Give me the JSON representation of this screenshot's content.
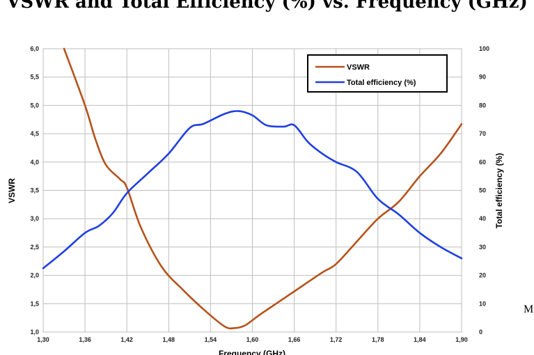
{
  "page": {
    "title": "VSWR and Total Efficiency (%) vs. Frequency (GHz)",
    "side_text": "M"
  },
  "chart_data": {
    "type": "line",
    "xlabel": "Frequency (GHz)",
    "ylabel": "VSWR",
    "y2label": "Total efficiency (%)",
    "xlim": [
      1.3,
      1.9
    ],
    "ylim": [
      1.0,
      6.0
    ],
    "y2lim": [
      0,
      100
    ],
    "grid": true,
    "legend_position": "top-right",
    "x_ticks": [
      "1,30",
      "1,36",
      "1,42",
      "1,48",
      "1,54",
      "1,60",
      "1,66",
      "1,72",
      "1,78",
      "1,84",
      "1,90"
    ],
    "y_ticks": [
      "1,0",
      "1,5",
      "2,0",
      "2,5",
      "3,0",
      "3,5",
      "4,0",
      "4,5",
      "5,0",
      "5,5",
      "6,0"
    ],
    "y2_ticks": [
      "0",
      "10",
      "20",
      "30",
      "40",
      "50",
      "60",
      "70",
      "80",
      "90",
      "100"
    ],
    "series": [
      {
        "name": "VSWR",
        "axis": "left",
        "color": "#b5521b",
        "x": [
          1.33,
          1.36,
          1.375,
          1.39,
          1.41,
          1.42,
          1.44,
          1.47,
          1.5,
          1.53,
          1.56,
          1.575,
          1.59,
          1.61,
          1.64,
          1.67,
          1.7,
          1.72,
          1.75,
          1.78,
          1.81,
          1.84,
          1.87,
          1.9
        ],
        "y": [
          6.0,
          5.0,
          4.4,
          3.95,
          3.7,
          3.55,
          2.85,
          2.15,
          1.75,
          1.4,
          1.1,
          1.07,
          1.12,
          1.3,
          1.55,
          1.8,
          2.05,
          2.2,
          2.6,
          3.0,
          3.3,
          3.75,
          4.15,
          4.67
        ]
      },
      {
        "name": "Total efficiency (%)",
        "axis": "right",
        "color": "#1f3fe0",
        "x": [
          1.3,
          1.33,
          1.36,
          1.38,
          1.4,
          1.42,
          1.45,
          1.48,
          1.51,
          1.53,
          1.56,
          1.58,
          1.6,
          1.62,
          1.645,
          1.66,
          1.68,
          1.7,
          1.72,
          1.75,
          1.78,
          1.81,
          1.84,
          1.87,
          1.9
        ],
        "y": [
          22.5,
          28.5,
          35,
          37.5,
          42,
          49,
          56,
          63,
          72,
          73.5,
          77,
          78,
          76.5,
          73,
          72.5,
          73,
          67,
          63,
          60,
          56.5,
          47,
          41.5,
          35,
          30,
          26
        ]
      }
    ]
  }
}
